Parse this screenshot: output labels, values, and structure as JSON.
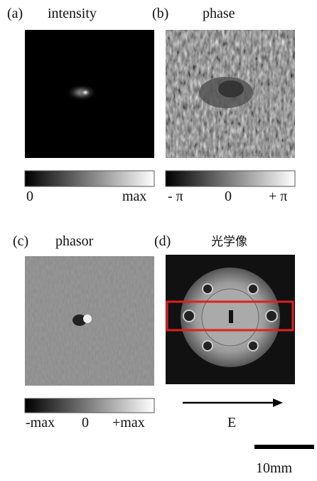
{
  "panels": [
    {
      "label": "(a)",
      "title": "intensity",
      "colorbar_labels": [
        "0",
        "max"
      ]
    },
    {
      "label": "(b)",
      "title": "phase",
      "colorbar_labels": [
        "- π",
        "0",
        "+ π"
      ]
    },
    {
      "label": "(c)",
      "title": "phasor",
      "colorbar_labels": [
        "-max",
        "0",
        "+max"
      ]
    },
    {
      "label": "(d)",
      "title": "光学像",
      "arrow_label": "E"
    }
  ],
  "scale_bar": "10mm"
}
